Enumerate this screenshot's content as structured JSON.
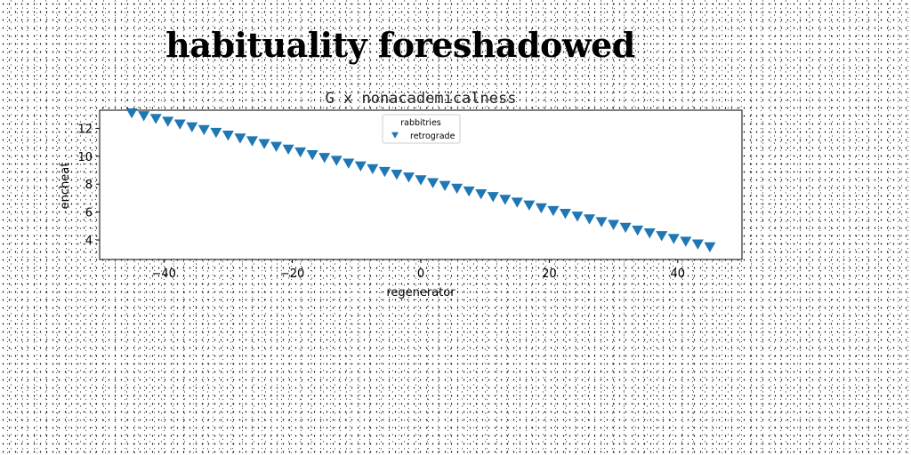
{
  "page": {
    "title": "habituality foreshadowed"
  },
  "chart_data": {
    "type": "scatter",
    "title": "G x nonacademicalness",
    "xlabel": "regenerator",
    "ylabel": "encheat",
    "xlim": [
      -50,
      50
    ],
    "ylim": [
      2.6,
      13.3
    ],
    "xticks": [
      -40,
      -20,
      0,
      20,
      40
    ],
    "yticks": [
      4,
      6,
      8,
      10,
      12
    ],
    "grid": false,
    "legend": {
      "title": "rabbitries",
      "placement": "top-center"
    },
    "series": [
      {
        "name": "retrograde",
        "marker": "triangle-down",
        "color": "#1f77b4",
        "x": [
          -45,
          -43.125,
          -41.25,
          -39.375,
          -37.5,
          -35.625,
          -33.75,
          -31.875,
          -30,
          -28.125,
          -26.25,
          -24.375,
          -22.5,
          -20.625,
          -18.75,
          -16.875,
          -15,
          -13.125,
          -11.25,
          -9.375,
          -7.5,
          -5.625,
          -3.75,
          -1.875,
          0,
          1.875,
          3.75,
          5.625,
          7.5,
          9.375,
          11.25,
          13.125,
          15,
          16.875,
          18.75,
          20.625,
          22.5,
          24.375,
          26.25,
          28.125,
          30,
          31.875,
          33.75,
          35.625,
          37.5,
          39.375,
          41.25,
          43.125,
          45
        ],
        "y": [
          13.1,
          12.9,
          12.7,
          12.5,
          12.3,
          12.1,
          11.9,
          11.7,
          11.5,
          11.3,
          11.1,
          10.9,
          10.7,
          10.5,
          10.3,
          10.1,
          9.9,
          9.7,
          9.5,
          9.3,
          9.1,
          8.9,
          8.7,
          8.5,
          8.3,
          8.1,
          7.9,
          7.7,
          7.5,
          7.3,
          7.1,
          6.9,
          6.7,
          6.5,
          6.3,
          6.1,
          5.9,
          5.7,
          5.5,
          5.3,
          5.1,
          4.9,
          4.7,
          4.5,
          4.3,
          4.1,
          3.9,
          3.7,
          3.5
        ]
      }
    ]
  }
}
